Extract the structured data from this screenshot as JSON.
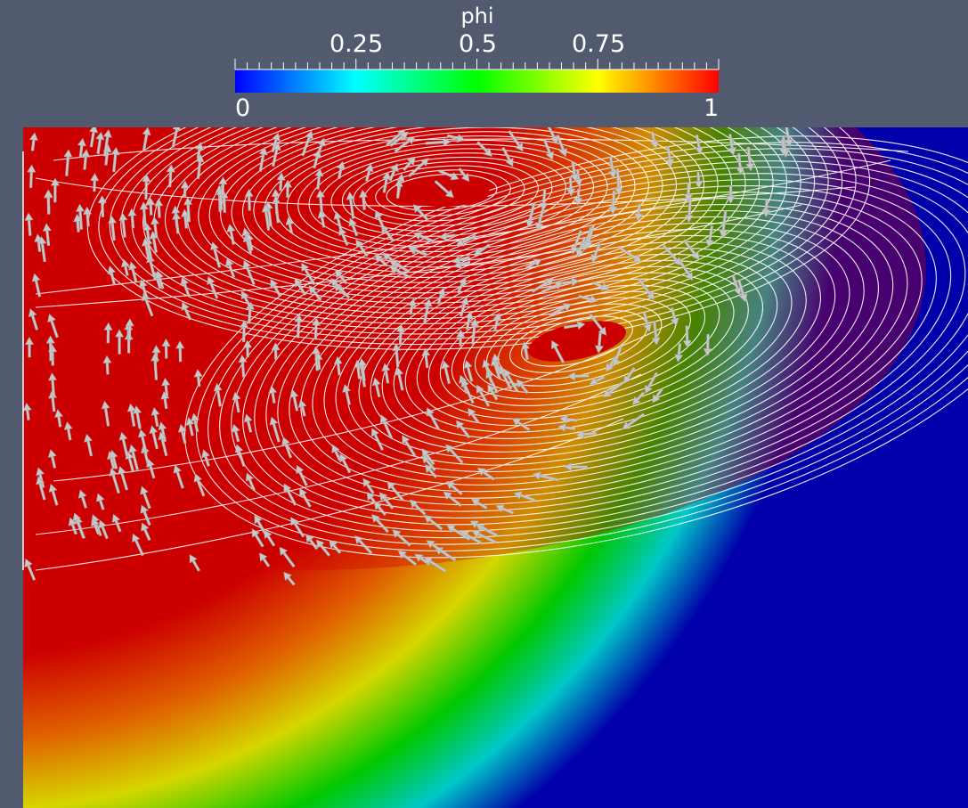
{
  "legend": {
    "title": "phi",
    "top_ticks": [
      "0.25",
      "0.5",
      "0.75"
    ],
    "min_label": "0",
    "max_label": "1",
    "colormap": [
      "#0000ff",
      "#00ffff",
      "#00ff00",
      "#ffff00",
      "#ff0000"
    ]
  },
  "field": {
    "background": "#525a70",
    "high_color": "#cc0000",
    "low_color": "#0000aa",
    "streamline_color": "#ffffff",
    "arrow_color": "#c8c8c8",
    "vortex_count": 2
  }
}
